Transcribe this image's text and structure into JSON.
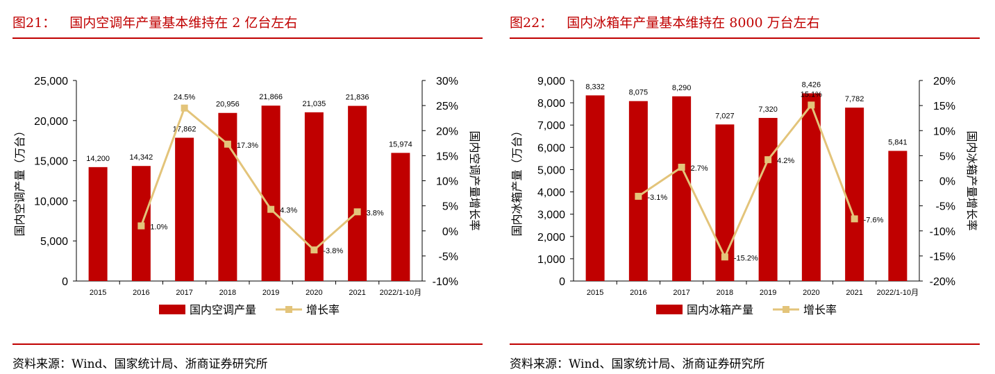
{
  "panels": [
    {
      "fig_num": "图21：",
      "title": "国内空调年产量基本维持在 2 亿台左右",
      "source": "资料来源：Wind、国家统计局、浙商证券研究所"
    },
    {
      "fig_num": "图22：",
      "title": "国内冰箱年产量基本维持在 8000 万台左右",
      "source": "资料来源：Wind、国家统计局、浙商证券研究所"
    }
  ],
  "colors": {
    "bar": "#c00000",
    "line": "#e3c47a",
    "title": "#c00000"
  },
  "chart_data": [
    {
      "type": "bar",
      "categories": [
        "2015",
        "2016",
        "2017",
        "2018",
        "2019",
        "2020",
        "2021",
        "2022/1-10月"
      ],
      "series": [
        {
          "name": "国内空调产量",
          "axis": "left",
          "type": "bar",
          "values": [
            14200,
            14342,
            17862,
            20956,
            21866,
            21035,
            21836,
            15974
          ],
          "labels": [
            "14,200",
            "14,342",
            "17,862",
            "20,956",
            "21,866",
            "21,035",
            "21,836",
            "15,974"
          ]
        },
        {
          "name": "增长率",
          "axis": "right",
          "type": "line",
          "values": [
            null,
            1.0,
            24.5,
            17.3,
            4.3,
            -3.8,
            3.8,
            null
          ],
          "labels": [
            "",
            "1.0%",
            "24.5%",
            "17.3%",
            "4.3%",
            "-3.8%",
            "3.8%",
            ""
          ]
        }
      ],
      "ylabel": "国内空调产量（万台）",
      "y2label": "国内空调产量增长率",
      "ylim": [
        0,
        25000
      ],
      "y2lim": [
        -10,
        30
      ],
      "yticks": [
        "0",
        "5,000",
        "10,000",
        "15,000",
        "20,000",
        "25,000"
      ],
      "y2ticks": [
        "-10%",
        "-5%",
        "0%",
        "5%",
        "10%",
        "15%",
        "20%",
        "25%",
        "30%"
      ],
      "grid": false,
      "legend": "bottom"
    },
    {
      "type": "bar",
      "categories": [
        "2015",
        "2016",
        "2017",
        "2018",
        "2019",
        "2020",
        "2021",
        "2022/1-10月"
      ],
      "series": [
        {
          "name": "国内冰箱产量",
          "axis": "left",
          "type": "bar",
          "values": [
            8332,
            8075,
            8290,
            7027,
            7320,
            8426,
            7782,
            5841
          ],
          "labels": [
            "8,332",
            "8,075",
            "8,290",
            "7,027",
            "7,320",
            "8,426",
            "7,782",
            "5,841"
          ]
        },
        {
          "name": "增长率",
          "axis": "right",
          "type": "line",
          "values": [
            null,
            -3.1,
            2.7,
            -15.2,
            4.2,
            15.1,
            -7.6,
            null
          ],
          "labels": [
            "",
            "-3.1%",
            "2.7%",
            "-15.2%",
            "4.2%",
            "15.1%",
            "-7.6%",
            ""
          ]
        }
      ],
      "ylabel": "国内冰箱产量（万台）",
      "y2label": "国内冰箱产量增长率",
      "ylim": [
        0,
        9000
      ],
      "y2lim": [
        -20,
        20
      ],
      "yticks": [
        "0",
        "1,000",
        "2,000",
        "3,000",
        "4,000",
        "5,000",
        "6,000",
        "7,000",
        "8,000",
        "9,000"
      ],
      "y2ticks": [
        "-20%",
        "-15%",
        "-10%",
        "-5%",
        "0%",
        "5%",
        "10%",
        "15%",
        "20%"
      ],
      "grid": false,
      "legend": "bottom"
    }
  ]
}
